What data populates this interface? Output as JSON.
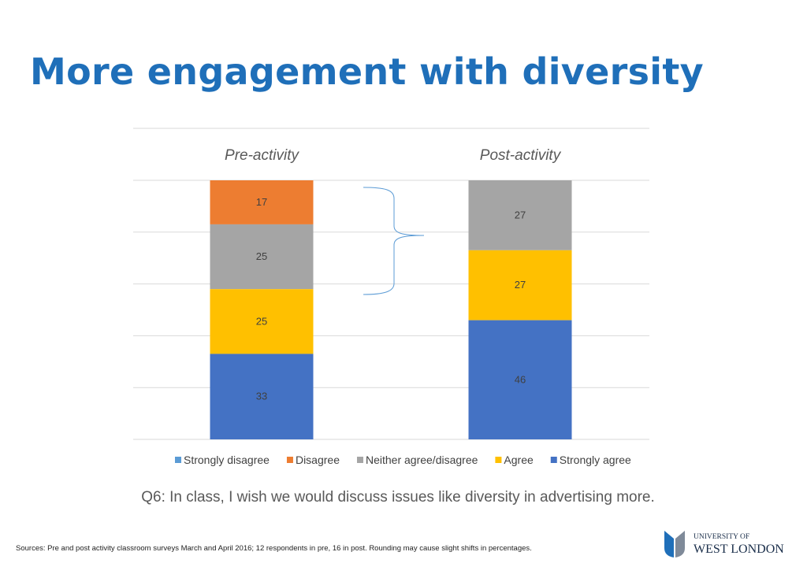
{
  "slide": {
    "title": "More engagement with diversity",
    "question": "Q6: In class, I wish we would discuss issues like diversity in advertising more.",
    "sources": "Sources: Pre and post activity classroom surveys March and April 2016; 12 respondents in pre, 16 in post. Rounding may cause slight  shifts in percentages.",
    "logo": {
      "line1": "UNIVERSITY OF",
      "line2": "WEST LONDON",
      "colors": [
        "#1F6FB9",
        "#7F8A99"
      ]
    }
  },
  "chart_data": {
    "type": "bar",
    "stacked": true,
    "categories": [
      "Pre-activity",
      "Post-activity"
    ],
    "series": [
      {
        "name": "Strongly disagree",
        "values": [
          0,
          0
        ],
        "color": "#5B9BD5"
      },
      {
        "name": "Disagree",
        "values": [
          17,
          0
        ],
        "color": "#ED7D31"
      },
      {
        "name": "Neither agree/disagree",
        "values": [
          25,
          27
        ],
        "color": "#A5A5A5"
      },
      {
        "name": "Agree",
        "values": [
          25,
          27
        ],
        "color": "#FFC000"
      },
      {
        "name": "Strongly agree",
        "values": [
          33,
          46
        ],
        "color": "#4472C4"
      }
    ],
    "ylim": [
      0,
      100
    ],
    "grid": true,
    "legend": "bottom",
    "annotation": "brace"
  }
}
